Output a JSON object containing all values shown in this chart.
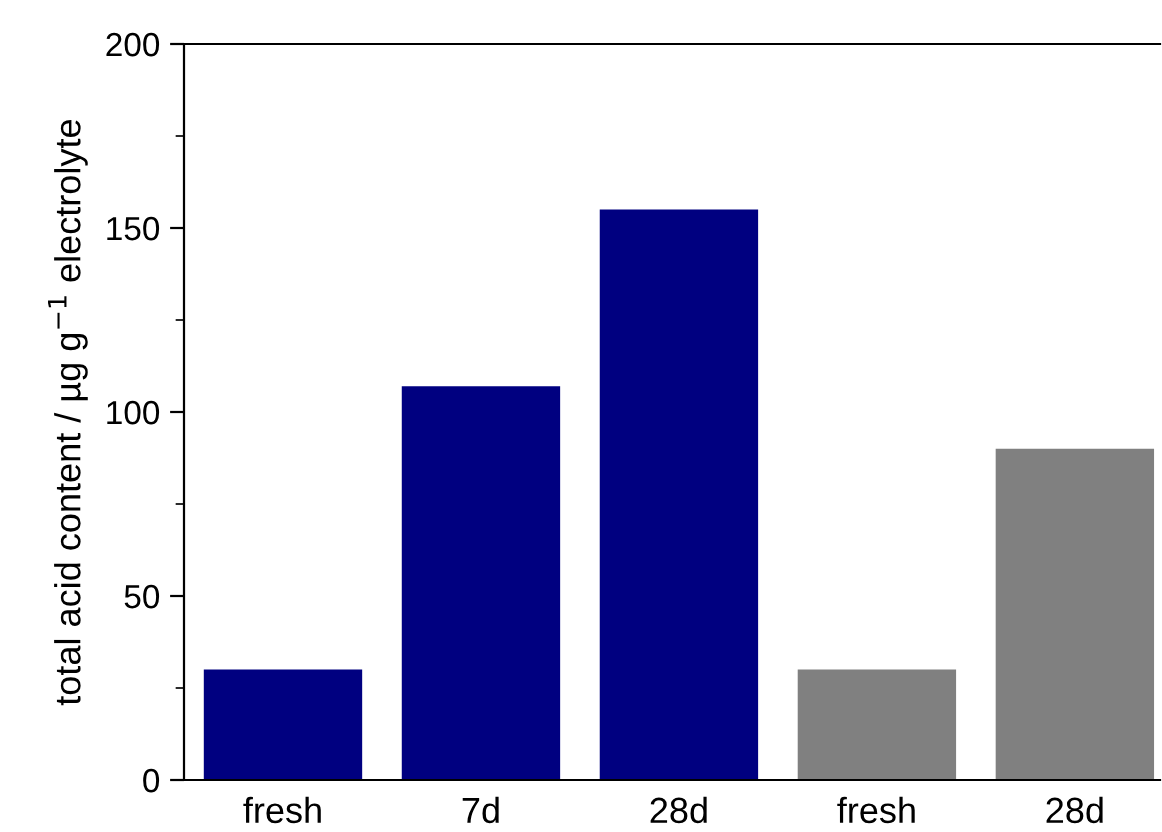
{
  "chart_data": {
    "type": "bar",
    "ylabel": "total acid content / µg g$^{−1}$ electrolyte",
    "categories": [
      "fresh",
      "7d",
      "28d",
      "fresh",
      "28d"
    ],
    "values": [
      30,
      107,
      155,
      30,
      90
    ],
    "colors": [
      "#000080",
      "#000080",
      "#000080",
      "#808080",
      "#808080"
    ],
    "ylim": [
      0,
      200
    ],
    "yticks": [
      0,
      50,
      100,
      150,
      200
    ],
    "grid": false
  }
}
